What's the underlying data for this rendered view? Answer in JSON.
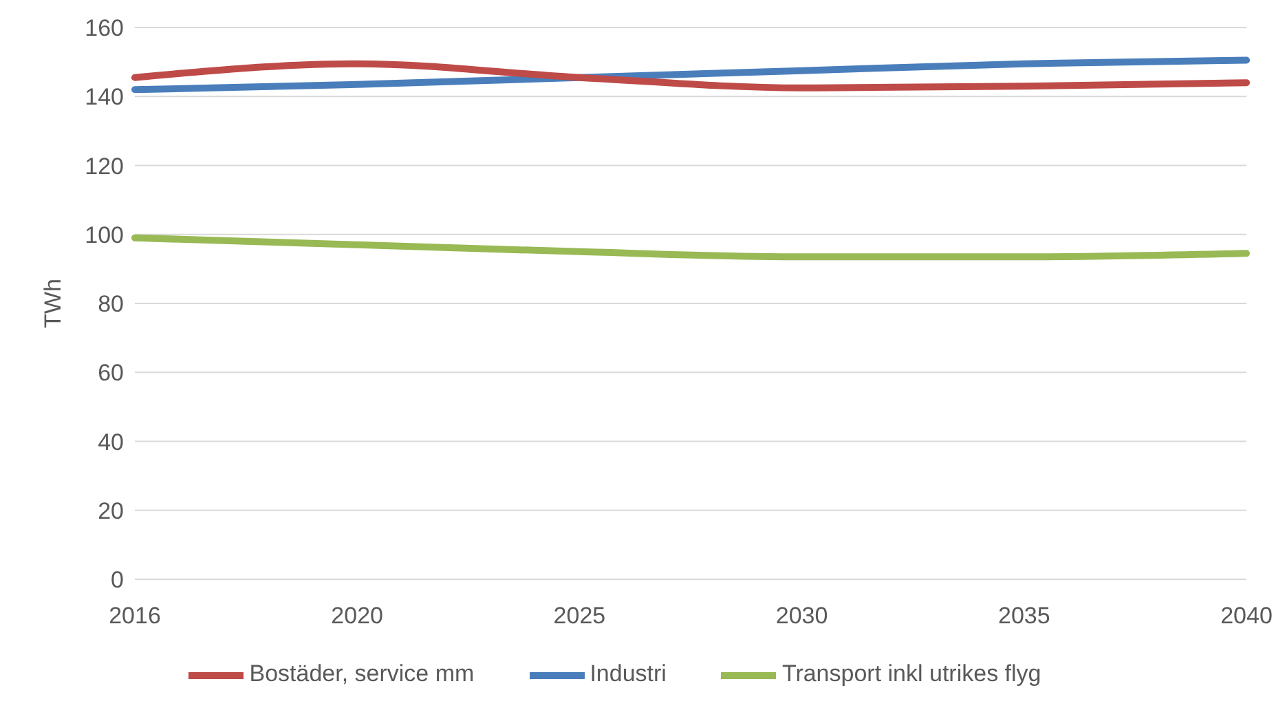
{
  "chart_data": {
    "type": "line",
    "ylabel": "TWh",
    "categories": [
      "2016",
      "2020",
      "2025",
      "2030",
      "2035",
      "2040"
    ],
    "series": [
      {
        "name": "Industri",
        "color": "#4a7ebb",
        "values": [
          142,
          143.5,
          145.5,
          147.5,
          149.5,
          150.5
        ]
      },
      {
        "name": "Bostäder, service mm",
        "color": "#be4b48",
        "values": [
          145.5,
          149.5,
          145.5,
          142.5,
          143,
          144
        ]
      },
      {
        "name": "Transport inkl utrikes flyg",
        "color": "#98b954",
        "values": [
          99,
          97,
          95,
          93.5,
          93.5,
          94.5
        ]
      }
    ],
    "ylim": [
      0,
      160
    ],
    "yticks": [
      0,
      20,
      40,
      60,
      80,
      100,
      120,
      140,
      160
    ],
    "grid": "y",
    "legend": "bottom",
    "marker": "none",
    "line_style": "solid"
  }
}
